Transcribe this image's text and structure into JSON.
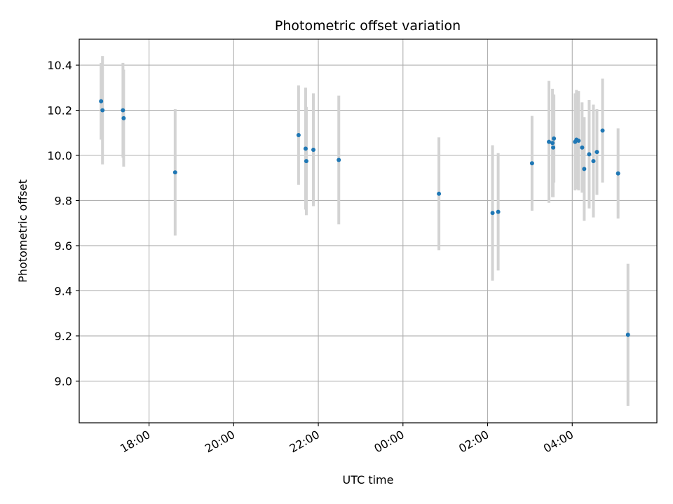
{
  "chart_data": {
    "type": "scatter",
    "title": "Photometric offset variation",
    "xlabel": "UTC time",
    "ylabel": "Photometric offset",
    "x_ticks": [
      {
        "x": "18:00",
        "label": "18:00"
      },
      {
        "x": "20:00",
        "label": "20:00"
      },
      {
        "x": "22:00",
        "label": "22:00"
      },
      {
        "x": "00:00",
        "label": "00:00"
      },
      {
        "x": "02:00",
        "label": "02:00"
      },
      {
        "x": "04:00",
        "label": "04:00"
      }
    ],
    "y_ticks": [
      9.0,
      9.2,
      9.4,
      9.6,
      9.8,
      10.0,
      10.2,
      10.4
    ],
    "y_tick_labels": [
      "9.0",
      "9.2",
      "9.4",
      "9.6",
      "9.8",
      "10.0",
      "10.2",
      "10.4"
    ],
    "xlim": [
      "16:21",
      "06:00"
    ],
    "ylim": [
      8.815,
      10.515
    ],
    "grid": true,
    "colors": {
      "points": "#1f77b4",
      "error_bars": "#d3d3d3",
      "grid": "#b0b0b0"
    },
    "points": [
      {
        "x": "16:52",
        "y": 10.24,
        "err": 0.17
      },
      {
        "x": "16:54",
        "y": 10.2,
        "err": 0.24
      },
      {
        "x": "17:23",
        "y": 10.2,
        "err": 0.21
      },
      {
        "x": "17:24",
        "y": 10.165,
        "err": 0.215
      },
      {
        "x": "18:37",
        "y": 9.925,
        "err": 0.28
      },
      {
        "x": "21:32",
        "y": 10.09,
        "err": 0.22
      },
      {
        "x": "21:42",
        "y": 10.03,
        "err": 0.27
      },
      {
        "x": "21:43",
        "y": 9.975,
        "err": 0.24
      },
      {
        "x": "21:53",
        "y": 10.025,
        "err": 0.25
      },
      {
        "x": "22:29",
        "y": 9.98,
        "err": 0.285
      },
      {
        "x": "00:51",
        "y": 9.83,
        "err": 0.25
      },
      {
        "x": "02:07",
        "y": 9.745,
        "err": 0.3
      },
      {
        "x": "02:15",
        "y": 9.75,
        "err": 0.26
      },
      {
        "x": "03:03",
        "y": 9.965,
        "err": 0.21
      },
      {
        "x": "03:27",
        "y": 10.06,
        "err": 0.27
      },
      {
        "x": "03:32",
        "y": 10.055,
        "err": 0.24
      },
      {
        "x": "03:33",
        "y": 10.035,
        "err": 0.22
      },
      {
        "x": "03:34",
        "y": 10.075,
        "err": 0.195
      },
      {
        "x": "04:04",
        "y": 10.06,
        "err": 0.215
      },
      {
        "x": "04:06",
        "y": 10.07,
        "err": 0.22
      },
      {
        "x": "04:09",
        "y": 10.065,
        "err": 0.22
      },
      {
        "x": "04:14",
        "y": 10.035,
        "err": 0.2
      },
      {
        "x": "04:17",
        "y": 9.94,
        "err": 0.23
      },
      {
        "x": "04:24",
        "y": 10.005,
        "err": 0.24
      },
      {
        "x": "04:30",
        "y": 9.975,
        "err": 0.25
      },
      {
        "x": "04:35",
        "y": 10.015,
        "err": 0.19
      },
      {
        "x": "04:43",
        "y": 10.11,
        "err": 0.23
      },
      {
        "x": "05:05",
        "y": 9.92,
        "err": 0.2
      },
      {
        "x": "05:19",
        "y": 9.205,
        "err": 0.315
      }
    ]
  }
}
